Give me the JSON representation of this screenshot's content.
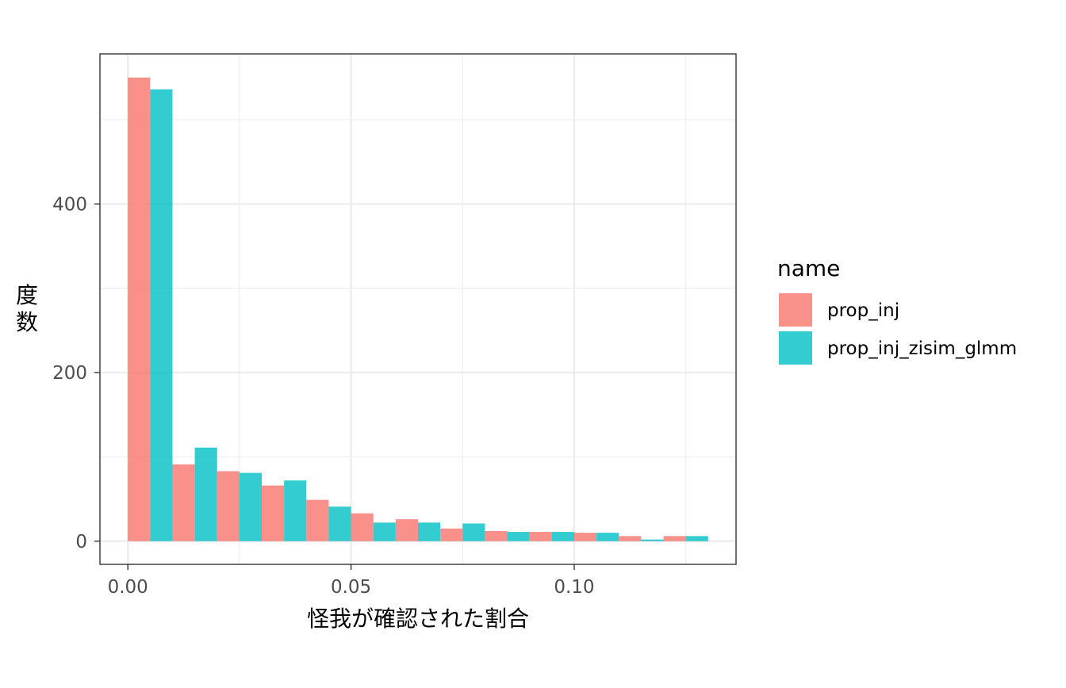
{
  "chart_data": {
    "type": "bar",
    "subtype": "histogram-dodged",
    "xlabel": "怪我が確認された割合",
    "ylabel": "度数",
    "x_ticks": [
      {
        "value": 0.0,
        "label": "0.00"
      },
      {
        "value": 0.05,
        "label": "0.05"
      },
      {
        "value": 0.1,
        "label": "0.10"
      }
    ],
    "y_ticks": [
      {
        "value": 0,
        "label": "0"
      },
      {
        "value": 200,
        "label": "200"
      },
      {
        "value": 400,
        "label": "400"
      }
    ],
    "xlim": [
      -0.00625,
      0.13625
    ],
    "ylim": [
      -27.5,
      578
    ],
    "bin_width": 0.01,
    "bin_centers": [
      0.005,
      0.015,
      0.025,
      0.035,
      0.045,
      0.055,
      0.065,
      0.075,
      0.085,
      0.095,
      0.105,
      0.115,
      0.125
    ],
    "legend": {
      "title": "name",
      "position": "right"
    },
    "grid": true,
    "series": [
      {
        "name": "prop_inj",
        "color": "#F8766D",
        "values": [
          550,
          91,
          83,
          66,
          49,
          33,
          26,
          15,
          12,
          11,
          10,
          6,
          6
        ]
      },
      {
        "name": "prop_inj_zisim_glmm",
        "color": "#00BFC4",
        "values": [
          536,
          111,
          81,
          72,
          41,
          22,
          22,
          21,
          11,
          11,
          10,
          2,
          6
        ]
      }
    ]
  }
}
